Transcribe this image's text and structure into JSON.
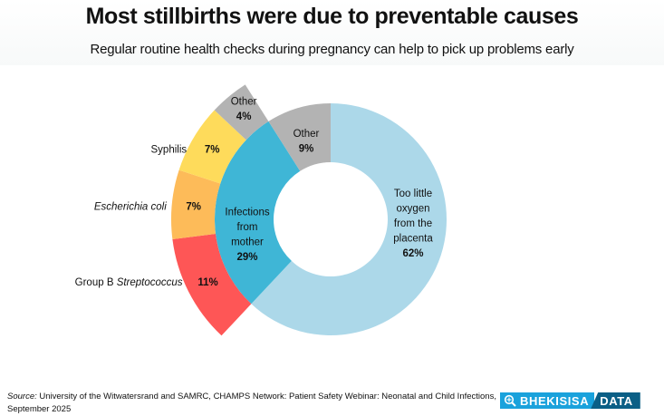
{
  "header": {
    "title": "Most stillbirths were due to preventable causes",
    "subtitle": "Regular routine health checks during pregnancy can help to pick up problems early"
  },
  "chart_data": {
    "type": "pie",
    "subtype": "nested-donut",
    "title": "Most stillbirths were due to preventable causes",
    "subtitle": "Regular routine health checks during pregnancy can help to pick up problems early",
    "start_angle": "12 o'clock, clockwise",
    "inner_ring": [
      {
        "name": "Too little oxygen from the placenta",
        "lines": [
          "Too little",
          "oxygen",
          "from the",
          "placenta"
        ],
        "value": 62,
        "label": "62%",
        "color": "#acd8e9"
      },
      {
        "name": "Infections from mother",
        "lines": [
          "Infections",
          "from",
          "mother"
        ],
        "value": 29,
        "label": "29%",
        "color": "#3fb6d6"
      },
      {
        "name": "Other",
        "lines": [
          "Other"
        ],
        "value": 9,
        "label": "9%",
        "color": "#b3b3b3"
      }
    ],
    "outer_ring": {
      "parent": "Infections from mother",
      "segments": [
        {
          "name": "Group B Streptococcus",
          "name_plain": "Group B ",
          "name_italic": "Streptococcus",
          "value": 11,
          "label": "11%",
          "color": "#fe5656"
        },
        {
          "name": "Escherichia coli",
          "name_plain": "",
          "name_italic": "Escherichia coli",
          "value": 7,
          "label": "7%",
          "color": "#fdbb59"
        },
        {
          "name": "Syphilis",
          "name_plain": "Syphilis",
          "name_italic": "",
          "value": 7,
          "label": "7%",
          "color": "#fedb5b"
        },
        {
          "name": "Other",
          "lines": [
            "Other"
          ],
          "value": 4,
          "label": "4%",
          "color": "#b3b3b3"
        }
      ]
    }
  },
  "footer": {
    "source_label": "Source:",
    "source_text": " University of the Witwatersrand and SAMRC, CHAMPS Network: Patient Safety Webinar: Neonatal and Child Infections, September 2025",
    "logo_left": "BHEKISISA",
    "logo_right": "DATA",
    "logo_icon": "magnifier-icon"
  }
}
